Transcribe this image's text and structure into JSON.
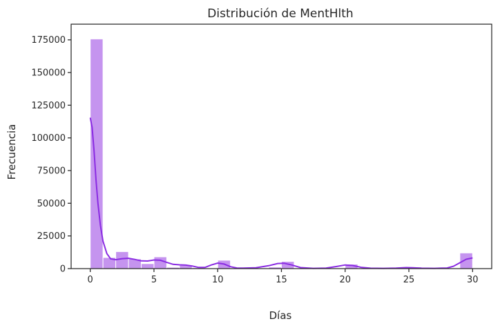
{
  "chart_data": {
    "type": "bar",
    "title": "Distribución de MentHlth",
    "xlabel": "Días",
    "ylabel": "Frecuencia",
    "xlim": [
      -1.5,
      31.5
    ],
    "ylim": [
      0,
      187000
    ],
    "x_ticks": [
      0,
      5,
      10,
      15,
      20,
      25,
      30
    ],
    "y_ticks": [
      0,
      25000,
      50000,
      75000,
      100000,
      125000,
      150000,
      175000
    ],
    "bin_width": 1,
    "bins": [
      {
        "x": 0,
        "value": 175700
      },
      {
        "x": 1,
        "value": 8500
      },
      {
        "x": 2,
        "value": 13000
      },
      {
        "x": 3,
        "value": 7400
      },
      {
        "x": 4,
        "value": 3800
      },
      {
        "x": 5,
        "value": 9000
      },
      {
        "x": 6,
        "value": 1000
      },
      {
        "x": 7,
        "value": 2600
      },
      {
        "x": 8,
        "value": 700
      },
      {
        "x": 9,
        "value": 100
      },
      {
        "x": 10,
        "value": 6400
      },
      {
        "x": 11,
        "value": 100
      },
      {
        "x": 12,
        "value": 400
      },
      {
        "x": 13,
        "value": 100
      },
      {
        "x": 14,
        "value": 1200
      },
      {
        "x": 15,
        "value": 5500
      },
      {
        "x": 16,
        "value": 100
      },
      {
        "x": 17,
        "value": 100
      },
      {
        "x": 18,
        "value": 100
      },
      {
        "x": 19,
        "value": 100
      },
      {
        "x": 20,
        "value": 3400
      },
      {
        "x": 21,
        "value": 300
      },
      {
        "x": 22,
        "value": 100
      },
      {
        "x": 23,
        "value": 100
      },
      {
        "x": 24,
        "value": 100
      },
      {
        "x": 25,
        "value": 1200
      },
      {
        "x": 26,
        "value": 100
      },
      {
        "x": 27,
        "value": 100
      },
      {
        "x": 28,
        "value": 300
      },
      {
        "x": 29,
        "value": 12000
      }
    ],
    "kde": [
      [
        0,
        115500
      ],
      [
        0.15,
        108000
      ],
      [
        0.3,
        90000
      ],
      [
        0.45,
        68000
      ],
      [
        0.6,
        50000
      ],
      [
        0.8,
        33000
      ],
      [
        1.0,
        21000
      ],
      [
        1.3,
        11500
      ],
      [
        1.6,
        7500
      ],
      [
        2.0,
        6800
      ],
      [
        2.5,
        7600
      ],
      [
        3.0,
        7900
      ],
      [
        3.5,
        7000
      ],
      [
        4.0,
        5900
      ],
      [
        4.5,
        5800
      ],
      [
        5.0,
        6600
      ],
      [
        5.5,
        6400
      ],
      [
        6.0,
        4800
      ],
      [
        6.5,
        3300
      ],
      [
        7.0,
        2900
      ],
      [
        7.5,
        2700
      ],
      [
        8.0,
        2000
      ],
      [
        8.5,
        900
      ],
      [
        9.0,
        900
      ],
      [
        9.5,
        2800
      ],
      [
        10.0,
        4200
      ],
      [
        10.5,
        3500
      ],
      [
        11.0,
        1500
      ],
      [
        11.5,
        500
      ],
      [
        12.0,
        400
      ],
      [
        13.0,
        700
      ],
      [
        14.0,
        2200
      ],
      [
        14.7,
        3900
      ],
      [
        15.2,
        4100
      ],
      [
        15.8,
        2800
      ],
      [
        16.5,
        800
      ],
      [
        17.5,
        200
      ],
      [
        18.5,
        400
      ],
      [
        19.3,
        1600
      ],
      [
        20.0,
        2800
      ],
      [
        20.6,
        2400
      ],
      [
        21.3,
        900
      ],
      [
        22.0,
        300
      ],
      [
        23.0,
        200
      ],
      [
        24.0,
        400
      ],
      [
        24.8,
        800
      ],
      [
        25.3,
        700
      ],
      [
        26.0,
        300
      ],
      [
        27.0,
        200
      ],
      [
        28.0,
        500
      ],
      [
        28.5,
        1800
      ],
      [
        29.0,
        4500
      ],
      [
        29.5,
        7200
      ],
      [
        30.0,
        8200
      ]
    ],
    "bar_color": "#c594ef",
    "bar_edge_color": "#ffffff",
    "line_color": "#8a2be2",
    "grid": false,
    "legend": "none"
  }
}
